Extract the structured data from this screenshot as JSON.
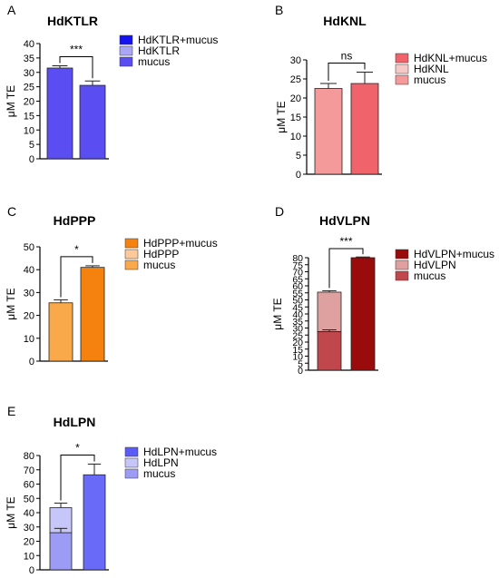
{
  "chart_data": [
    {
      "panel_letter": "A",
      "title": "HdKTLR",
      "type": "bar",
      "ylabel": "μM TE",
      "ylim": [
        0,
        40
      ],
      "yticks": [
        0,
        5,
        10,
        15,
        20,
        25,
        30,
        35,
        40
      ],
      "bars": [
        {
          "segments": [
            {
              "series": "HdKTLR",
              "value": 31.5,
              "error": 0.8
            }
          ]
        },
        {
          "segments": [
            {
              "series": "HdKTLR+mucus",
              "value": 25.5,
              "error": 1.5
            }
          ]
        }
      ],
      "significance": "***",
      "legend": [
        {
          "label": "HdKTLR+mucus",
          "color": "#1414f0"
        },
        {
          "label": "HdKTLR",
          "color": "#a9a6f5"
        },
        {
          "label": "mucus",
          "color": "#5a4ef2"
        }
      ],
      "colors": {
        "HdKTLR": "#5a4ef2",
        "HdKTLR+mucus": "#5a4ef2"
      }
    },
    {
      "panel_letter": "B",
      "title": "HdKNL",
      "type": "bar",
      "ylabel": "μM TE",
      "ylim": [
        0,
        30
      ],
      "yticks": [
        0,
        5,
        10,
        15,
        20,
        25,
        30
      ],
      "bars": [
        {
          "segments": [
            {
              "series": "HdKNL",
              "value": 22.5,
              "error": 1.3
            }
          ]
        },
        {
          "segments": [
            {
              "series": "HdKNL+mucus",
              "value": 23.8,
              "error": 3.0
            }
          ]
        }
      ],
      "significance": "ns",
      "legend": [
        {
          "label": "HdKNL+mucus",
          "color": "#f0636a"
        },
        {
          "label": "HdKNL",
          "color": "#f7c9c6"
        },
        {
          "label": "mucus",
          "color": "#f59a9a"
        }
      ],
      "colors": {
        "HdKNL": "#f59a9a",
        "HdKNL+mucus": "#f0636a"
      }
    },
    {
      "panel_letter": "C",
      "title": "HdPPP",
      "type": "bar",
      "ylabel": "μM TE",
      "ylim": [
        0,
        50
      ],
      "yticks": [
        0,
        10,
        20,
        30,
        40,
        50
      ],
      "bars": [
        {
          "segments": [
            {
              "series": "HdPPP",
              "value": 25.5,
              "error": 1.3
            }
          ]
        },
        {
          "segments": [
            {
              "series": "HdPPP+mucus",
              "value": 41,
              "error": 0.7
            }
          ]
        }
      ],
      "significance": "*",
      "legend": [
        {
          "label": "HdPPP+mucus",
          "color": "#f5820f"
        },
        {
          "label": "HdPPP",
          "color": "#fbc99a"
        },
        {
          "label": "mucus",
          "color": "#f9a84a"
        }
      ],
      "colors": {
        "HdPPP": "#f9a84a",
        "HdPPP+mucus": "#f5820f"
      }
    },
    {
      "panel_letter": "D",
      "title": "HdVLPN",
      "type": "bar",
      "ylabel": "μM TE",
      "ylim": [
        0,
        80
      ],
      "yticks": [
        0,
        5,
        10,
        15,
        20,
        25,
        30,
        35,
        40,
        45,
        50,
        55,
        60,
        65,
        70,
        75,
        80
      ],
      "bars": [
        {
          "segments": [
            {
              "series": "mucus",
              "value": 27.5,
              "error": 1.2
            },
            {
              "series": "HdVLPN",
              "value": 28,
              "error": 1.0
            }
          ]
        },
        {
          "segments": [
            {
              "series": "HdVLPN+mucus",
              "value": 80,
              "error": 0.5
            }
          ]
        }
      ],
      "significance": "***",
      "legend": [
        {
          "label": "HdVLPN+mucus",
          "color": "#9a0b0b"
        },
        {
          "label": "HdVLPN",
          "color": "#dfa0a0"
        },
        {
          "label": "mucus",
          "color": "#c0474b"
        }
      ],
      "colors": {
        "mucus": "#c0474b",
        "HdVLPN": "#dfa0a0",
        "HdVLPN+mucus": "#9a0b0b"
      }
    },
    {
      "panel_letter": "E",
      "title": "HdLPN",
      "type": "bar",
      "ylabel": "μM TE",
      "ylim": [
        0,
        80
      ],
      "yticks": [
        0,
        10,
        20,
        30,
        40,
        50,
        60,
        70,
        80
      ],
      "bars": [
        {
          "segments": [
            {
              "series": "mucus",
              "value": 26,
              "error": 3.0
            },
            {
              "series": "HdLPN",
              "value": 17.5,
              "error": 3.2
            }
          ]
        },
        {
          "segments": [
            {
              "series": "HdLPN+mucus",
              "value": 66.5,
              "error": 7.5
            }
          ]
        }
      ],
      "significance": "*",
      "legend": [
        {
          "label": "HdLPN+mucus",
          "color": "#5b5bf5"
        },
        {
          "label": "HdLPN",
          "color": "#c6c6f8"
        },
        {
          "label": "mucus",
          "color": "#9c9cf5"
        }
      ],
      "colors": {
        "mucus": "#9c9cf5",
        "HdLPN": "#c6c6f8",
        "HdLPN+mucus": "#6a6af8"
      }
    }
  ]
}
